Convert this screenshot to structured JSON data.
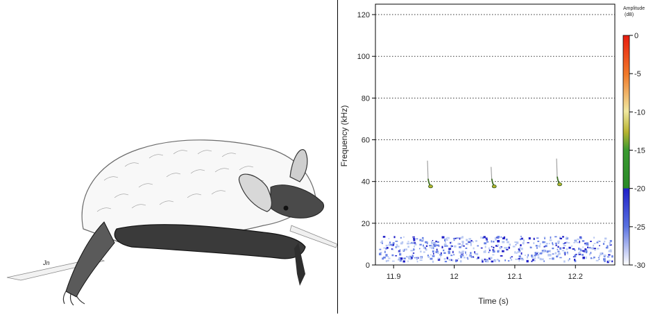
{
  "illustration": {
    "subject": "bat",
    "signature": "Jn"
  },
  "chart_data": {
    "type": "heatmap",
    "subtype": "spectrogram",
    "xlabel": "Time (s)",
    "ylabel": "Frequency (kHz)",
    "xlim": [
      11.87,
      12.265
    ],
    "ylim": [
      0,
      125
    ],
    "x_ticks": [
      11.9,
      12.0,
      12.1,
      12.2
    ],
    "x_tick_labels": [
      "11.9",
      "12",
      "12.1",
      "12.2"
    ],
    "y_ticks": [
      0,
      20,
      40,
      60,
      80,
      100,
      120
    ],
    "y_tick_labels": [
      "0",
      "20",
      "40",
      "60",
      "80",
      "100",
      "120"
    ],
    "grid": "horizontal dotted",
    "calls": [
      {
        "time": 11.957,
        "freq_start": 50,
        "freq_end": 38
      },
      {
        "time": 12.062,
        "freq_start": 47,
        "freq_end": 38
      },
      {
        "time": 12.17,
        "freq_start": 51,
        "freq_end": 39
      }
    ],
    "noise_band": {
      "freq_min": 2,
      "freq_max": 14
    },
    "colorbar": {
      "title_lines": [
        "Amplitude",
        "(dB)"
      ],
      "ticks": [
        0,
        -5,
        -10,
        -15,
        -20,
        -25,
        -30
      ],
      "tick_labels": [
        "0",
        "-5",
        "-10",
        "-15",
        "-20",
        "-25",
        "-30"
      ],
      "range": [
        -30,
        0
      ],
      "colors": {
        "0": "#e81c10",
        "-5": "#f07a2a",
        "-10": "#f0e8a0",
        "-12.5": "#b8b430",
        "-15": "#3a9a30",
        "-20": "#2020c8",
        "-25": "#5870e0",
        "-30": "#ffffff"
      }
    }
  }
}
